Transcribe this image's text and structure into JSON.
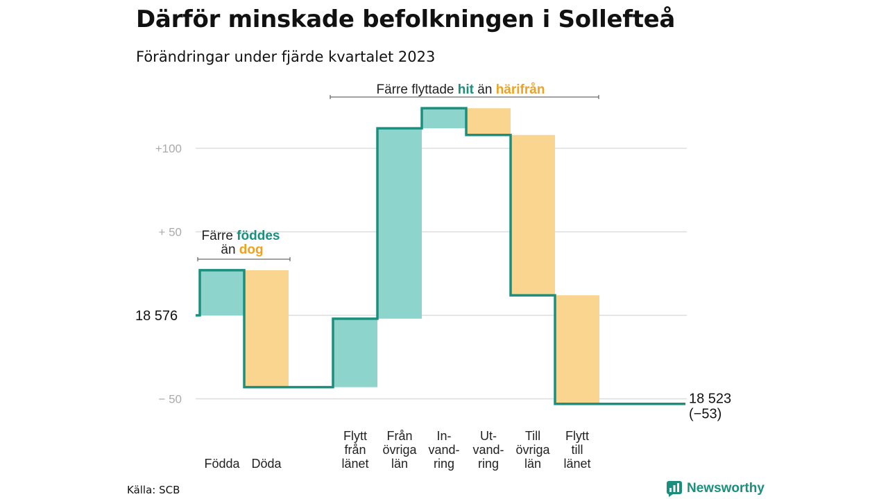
{
  "title": "Därför minskade befolkningen i Sollefteå",
  "subtitle": "Förändringar under fjärde kvartalet 2023",
  "source": "Källa: SCB",
  "brand": "Newsworthy",
  "colors": {
    "increase": "#8dd5cc",
    "decrease": "#fad590",
    "line": "#1b8f7e",
    "grid": "#dddddd",
    "accent_orange": "#f0a21f"
  },
  "annotations": {
    "births": {
      "prefix": "Färre",
      "highlight1": "föddes",
      "connector": "än",
      "highlight2": "dog"
    },
    "migration": {
      "prefix": "Färre flyttade",
      "highlight1": "hit",
      "connector": "än",
      "highlight2": "härifrån"
    }
  },
  "chart_data": {
    "type": "waterfall",
    "start_value": 18576,
    "start_label": "18  576",
    "end_label": "18 523",
    "end_change_label": "(−53)",
    "y_ticks": [
      {
        "value": 100,
        "label": "+100"
      },
      {
        "value": 50,
        "label": "+  50"
      },
      {
        "value": -50,
        "label": "−  50"
      }
    ],
    "grid": true,
    "ylim": [
      -55,
      125
    ],
    "steps": [
      {
        "label": [
          "Födda"
        ],
        "value": 27
      },
      {
        "label": [
          "Döda"
        ],
        "value": -70
      },
      {
        "label": [
          "Flytt",
          "från",
          "länet"
        ],
        "value": 41
      },
      {
        "label": [
          "Från",
          "övriga",
          "län"
        ],
        "value": 114
      },
      {
        "label": [
          "In-",
          "vand-",
          "ring"
        ],
        "value": 12
      },
      {
        "label": [
          "Ut-",
          "vand-",
          "ring"
        ],
        "value": -16
      },
      {
        "label": [
          "Till",
          "övriga",
          "län"
        ],
        "value": -96
      },
      {
        "label": [
          "Flytt",
          "till",
          "länet"
        ],
        "value": -65
      }
    ]
  }
}
